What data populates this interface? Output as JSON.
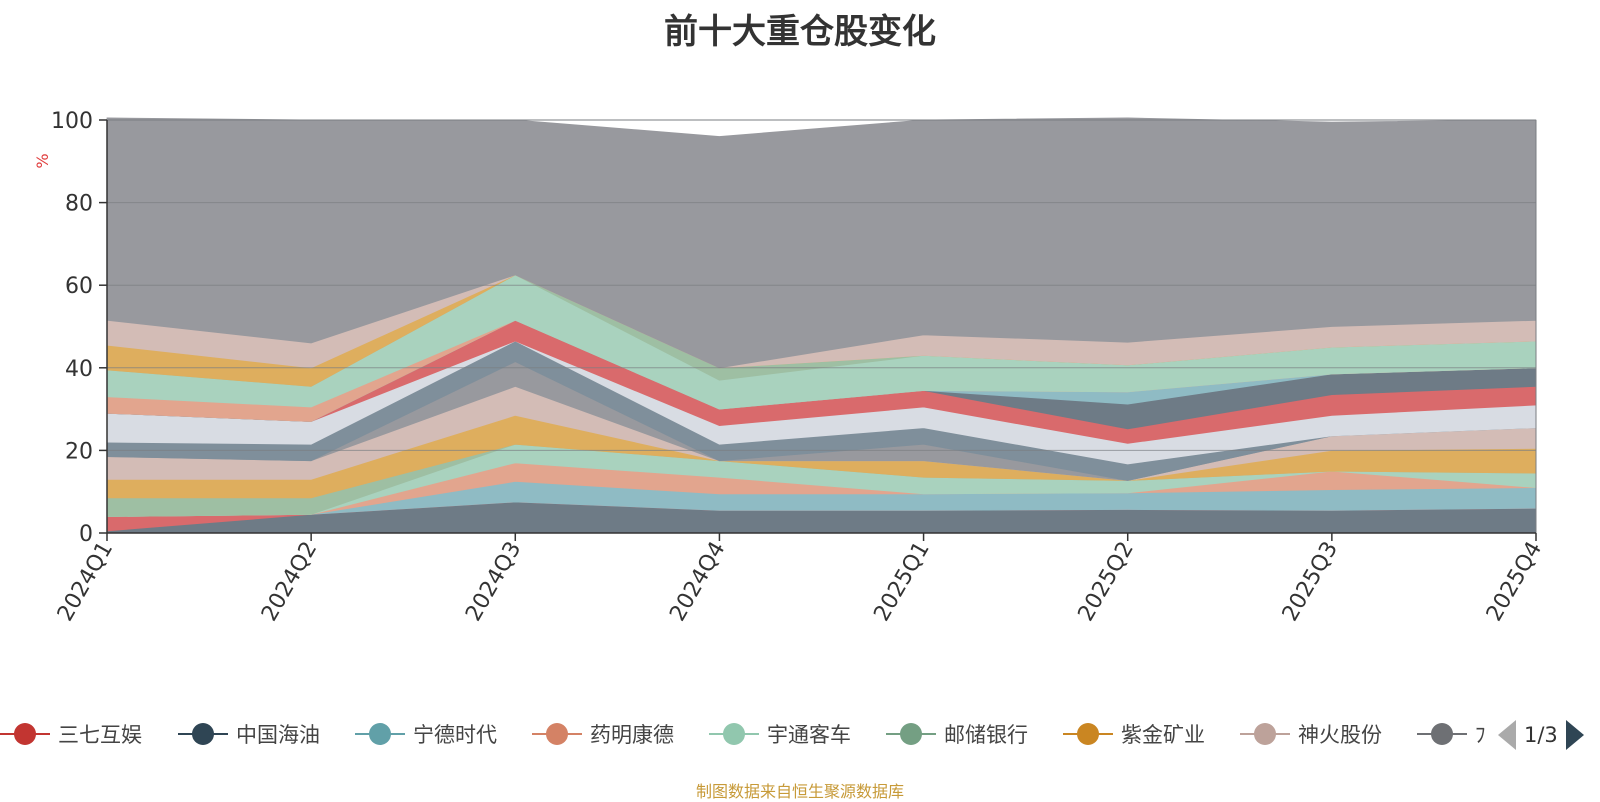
{
  "chart_data": {
    "type": "area",
    "title": "前十大重仓股变化",
    "ylabel": "%",
    "ylim": [
      0,
      100
    ],
    "yticks": [
      0,
      20,
      40,
      60,
      80,
      100
    ],
    "categories": [
      "2024Q1",
      "2024Q2",
      "2024Q3",
      "2024Q4",
      "2025Q1",
      "2025Q2",
      "2025Q3",
      "2025Q4"
    ],
    "stacked": true,
    "grid": true,
    "legend_position": "bottom",
    "series": [
      {
        "name": "",
        "color": "#6e7b86",
        "values": [
          0.5,
          4.5,
          7.5,
          5.5,
          5.5,
          5.7,
          5.5,
          6.0
        ]
      },
      {
        "name": "",
        "color": "#d96a6c",
        "values": [
          3.5,
          0.0,
          0.0,
          0.0,
          0.0,
          0.0,
          0.0,
          0.0
        ]
      },
      {
        "name": "",
        "color": "#8fbbc4",
        "values": [
          0.0,
          0.0,
          5.0,
          4.0,
          4.0,
          4.0,
          5.0,
          5.0
        ]
      },
      {
        "name": "",
        "color": "#e2a58e",
        "values": [
          0.0,
          0.0,
          4.5,
          4.0,
          0.0,
          0.0,
          4.5,
          0.0
        ]
      },
      {
        "name": "",
        "color": "#a9d2be",
        "values": [
          0.0,
          0.0,
          4.5,
          4.0,
          4.0,
          3.0,
          0.0,
          3.5
        ]
      },
      {
        "name": "",
        "color": "#9ebfa3",
        "values": [
          4.5,
          4.0,
          0.0,
          0.0,
          0.0,
          0.0,
          0.0,
          0.0
        ]
      },
      {
        "name": "",
        "color": "#deae5e",
        "values": [
          4.5,
          4.5,
          7.0,
          0.0,
          4.0,
          0.0,
          5.0,
          6.0
        ]
      },
      {
        "name": "",
        "color": "#d3bcb6",
        "values": [
          5.5,
          4.5,
          7.0,
          0.0,
          0.0,
          0.0,
          3.5,
          5.0
        ]
      },
      {
        "name": "",
        "color": "#98999e",
        "values": [
          0.0,
          0.0,
          6.0,
          0.0,
          4.0,
          0.0,
          0.0,
          0.0
        ]
      },
      {
        "name": "",
        "color": "#7f8f9b",
        "values": [
          3.5,
          4.0,
          5.0,
          4.0,
          4.0,
          4.0,
          0.0,
          0.0
        ]
      },
      {
        "name": "",
        "color": "#d8dce3",
        "values": [
          7.0,
          5.5,
          0.0,
          4.5,
          5.0,
          5.0,
          5.0,
          5.5
        ]
      },
      {
        "name": "",
        "color": "#d96a6c",
        "values": [
          0.0,
          0.0,
          5.0,
          4.0,
          4.0,
          3.5,
          5.0,
          4.5
        ]
      },
      {
        "name": "",
        "color": "#6e7b86",
        "values": [
          0.0,
          0.0,
          0.0,
          0.0,
          0.0,
          6.0,
          5.0,
          4.5
        ]
      },
      {
        "name": "",
        "color": "#8fbbc4",
        "values": [
          0.0,
          0.0,
          0.0,
          0.0,
          0.0,
          3.0,
          0.0,
          0.0
        ]
      },
      {
        "name": "",
        "color": "#e2a58e",
        "values": [
          4.0,
          3.5,
          0.0,
          0.0,
          0.0,
          0.0,
          0.0,
          0.0
        ]
      },
      {
        "name": "",
        "color": "#a9d2be",
        "values": [
          6.5,
          5.0,
          11.0,
          7.0,
          8.5,
          6.5,
          6.5,
          6.5
        ]
      },
      {
        "name": "",
        "color": "#9ebfa3",
        "values": [
          0.0,
          0.0,
          0.0,
          3.0,
          0.0,
          0.0,
          0.0,
          0.0
        ]
      },
      {
        "name": "",
        "color": "#deae5e",
        "values": [
          6.0,
          4.5,
          0.0,
          0.0,
          0.0,
          0.0,
          0.0,
          0.0
        ]
      },
      {
        "name": "",
        "color": "#d3bcb6",
        "values": [
          6.0,
          6.0,
          0.0,
          0.0,
          5.0,
          5.5,
          5.0,
          5.0
        ]
      },
      {
        "name": "",
        "color": "#98999e",
        "values": [
          49.0,
          54.0,
          37.5,
          56.0,
          52.0,
          54.3,
          49.5,
          48.5
        ]
      }
    ]
  },
  "legend": {
    "items": [
      {
        "label": "三七互娱",
        "color": "#c23531"
      },
      {
        "label": "中国海油",
        "color": "#2f4554"
      },
      {
        "label": "宁德时代",
        "color": "#61a0a8"
      },
      {
        "label": "药明康德",
        "color": "#d48265"
      },
      {
        "label": "宇通客车",
        "color": "#91c7ae"
      },
      {
        "label": "邮储银行",
        "color": "#749f83"
      },
      {
        "label": "紫金矿业",
        "color": "#ca8622"
      },
      {
        "label": "神火股份",
        "color": "#bda29a"
      },
      {
        "label": "ﾌ",
        "color": "#6e7074"
      }
    ],
    "pager_text": "1/3"
  },
  "footer": {
    "source_text": "制图数据来自恒生聚源数据库"
  }
}
